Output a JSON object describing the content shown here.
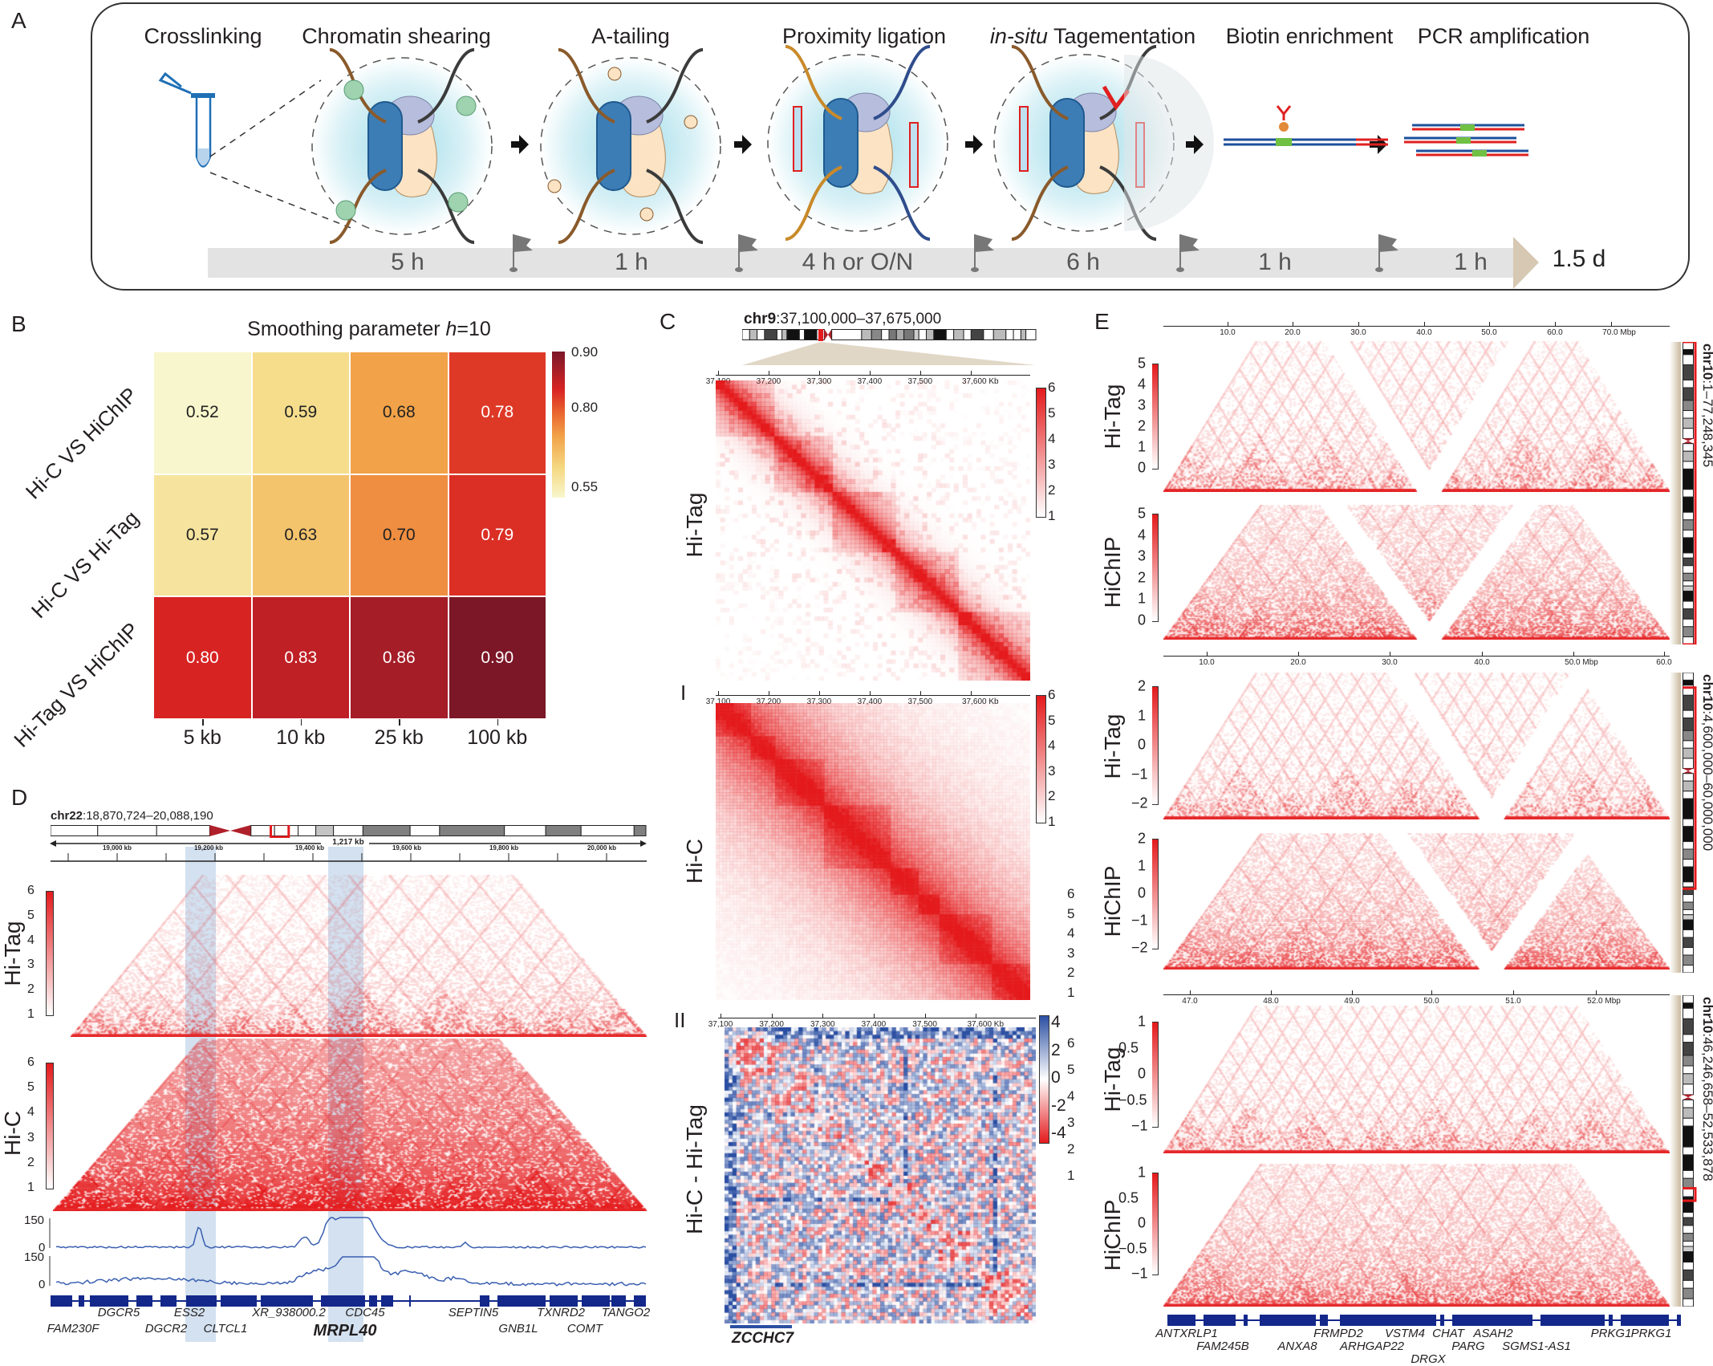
{
  "panel_labels": {
    "a": "A",
    "b": "B",
    "c": "C",
    "c1": "I",
    "c2": "II",
    "d": "D",
    "e": "E"
  },
  "panel_a": {
    "steps": [
      "Crosslinking",
      "Chromatin shearing",
      "A-tailing",
      "Proximity ligation",
      "Biotin enrichment",
      "PCR amplification"
    ],
    "tagementation": {
      "italic": "in-situ",
      "rest": " Tagementation"
    },
    "timeline": {
      "durations": [
        "5 h",
        "1 h",
        "4 h or O/N",
        "6 h",
        "1 h",
        "1 h"
      ],
      "total": "1.5 d"
    },
    "icons": [
      "tube-icon",
      "chromatin-icon",
      "flag-icon",
      "arrow-right-icon"
    ]
  },
  "panel_b": {
    "title_prefix": "Smoothing parameter ",
    "title_var": "h",
    "title_suffix": "=10",
    "chart_data": {
      "type": "heatmap",
      "rows": [
        "Hi-C VS HiChIP",
        "Hi-C VS Hi-Tag",
        "Hi-Tag VS HiChIP"
      ],
      "columns": [
        "5 kb",
        "10 kb",
        "25 kb",
        "100 kb"
      ],
      "values": [
        [
          0.52,
          0.59,
          0.68,
          0.78
        ],
        [
          0.57,
          0.63,
          0.7,
          0.79
        ],
        [
          0.8,
          0.83,
          0.86,
          0.9
        ]
      ],
      "value_labels": [
        [
          "0.52",
          "0.59",
          "0.68",
          "0.78"
        ],
        [
          "0.57",
          "0.63",
          "0.70",
          "0.79"
        ],
        [
          "0.80",
          "0.83",
          "0.86",
          "0.90"
        ]
      ],
      "colorbar": {
        "range": [
          0.52,
          0.9
        ],
        "ticks": [
          "0.90",
          "0.80",
          "0.55"
        ],
        "colormap": "YlOrRd"
      }
    }
  },
  "panel_c": {
    "region_chr": "chr9",
    "region_range": ":37,100,000–37,675,000",
    "axis_ticks": [
      "37,100",
      "37,200",
      "37,300",
      "37,400",
      "37,500",
      "37,600 Kb"
    ],
    "hitag_label": "Hi-Tag",
    "hic_label": "Hi-C",
    "diff_label": "Hi-C - Hi-Tag",
    "colorbar_ticks": [
      "6",
      "5",
      "4",
      "3",
      "2",
      "1"
    ],
    "diff_colorbar_ticks": [
      "4",
      "2",
      "0",
      "-2",
      "-4"
    ],
    "stray_ticks": [
      "6",
      "5",
      "4",
      "3",
      "2",
      "1"
    ],
    "gene": "ZCCHC7",
    "colors": {
      "positive": "#e41a1c",
      "negative": "#2b4fa2"
    }
  },
  "panel_d": {
    "region_chr": "chr22",
    "region_range": ":18,870,724–20,088,190",
    "span": "1,217 kb",
    "axis_ticks": [
      "19,000 kb",
      "19,200 kb",
      "19,400 kb",
      "19,600 kb",
      "19,800 kb",
      "20,000 kb"
    ],
    "hitag_label": "Hi-Tag",
    "hic_label": "Hi-C",
    "colorbar_ticks": [
      "6",
      "5",
      "4",
      "3",
      "2",
      "1"
    ],
    "track_ticks": {
      "top": "150",
      "bottom": "0"
    },
    "genes_row1": [
      "DGCR5",
      "ESS2",
      "XR_938000.2",
      "CDC45",
      "SEPTIN5",
      "TXNRD2",
      "TANGO2"
    ],
    "genes_row2": [
      "FAM230F",
      "DGCR2",
      "CLTCL1",
      "MRPL40",
      "GNB1L",
      "COMT"
    ],
    "highlight_color": "#c8d9ec"
  },
  "panel_e": {
    "blocks": [
      {
        "axis_ticks": [
          "10.0",
          "20.0",
          "30.0",
          "40.0",
          "50.0",
          "60.0",
          "70.0 Mbp"
        ],
        "hitag_ticks": [
          "5",
          "4",
          "3",
          "2",
          "1",
          "0"
        ],
        "hichip_ticks": [
          "5",
          "4",
          "3",
          "2",
          "1",
          "0"
        ],
        "chr_bold": "chr10",
        "chr_range": ":1–77,248,345"
      },
      {
        "axis_ticks": [
          "10.0",
          "20.0",
          "30.0",
          "40.0",
          "50.0 Mbp",
          "60.0"
        ],
        "hitag_ticks": [
          "2",
          "1",
          "0",
          "−1",
          "−2"
        ],
        "hichip_ticks": [
          "2",
          "1",
          "0",
          "−1",
          "−2"
        ],
        "chr_bold": "chr10",
        "chr_range": ":4,600,000–60,000,000"
      },
      {
        "axis_ticks": [
          "47.0",
          "48.0",
          "49.0",
          "50.0",
          "51.0",
          "52.0 Mbp"
        ],
        "hitag_ticks": [
          "1",
          "0.5",
          "0",
          "−0.5",
          "−1"
        ],
        "hichip_ticks": [
          "1",
          "0.5",
          "0",
          "−0.5",
          "−1"
        ],
        "chr_bold": "chr10",
        "chr_range": ":46,246,658–52,533,878"
      }
    ],
    "hitag_label": "Hi-Tag",
    "hichip_label": "HiChIP",
    "genes_row1": [
      "ANTXRLP1",
      "FRMPD2",
      "VSTM4",
      "CHAT",
      "ASAH2",
      "PRKG1",
      "PRKG1"
    ],
    "genes_row2": [
      "FAM245B",
      "ANXA8",
      "ARHGAP22",
      "PARG",
      "SGMS1-AS1"
    ],
    "genes_row3": [
      "DRGX"
    ]
  }
}
